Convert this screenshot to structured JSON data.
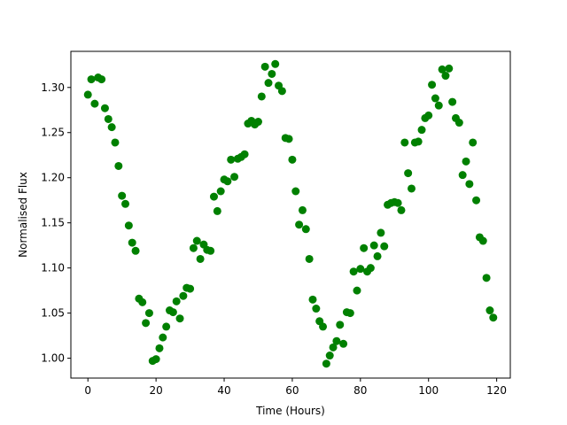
{
  "chart_data": {
    "type": "scatter",
    "title": "",
    "xlabel": "Time (Hours)",
    "ylabel": "Normalised Flux",
    "xlim": [
      -5,
      124
    ],
    "ylim": [
      0.978,
      1.34
    ],
    "xticks": [
      0,
      20,
      40,
      60,
      80,
      100,
      120
    ],
    "xtick_labels": [
      "0",
      "20",
      "40",
      "60",
      "80",
      "100",
      "120"
    ],
    "yticks": [
      1.0,
      1.05,
      1.1,
      1.15,
      1.2,
      1.25,
      1.3
    ],
    "ytick_labels": [
      "1.00",
      "1.05",
      "1.10",
      "1.15",
      "1.20",
      "1.25",
      "1.30"
    ],
    "grid": false,
    "marker_color": "#008000",
    "series": [
      {
        "x": [
          0,
          1,
          2,
          3,
          4,
          5,
          6,
          7,
          8,
          9,
          10,
          11,
          12,
          13,
          14,
          15,
          16,
          17,
          18,
          19,
          20,
          21,
          22,
          23,
          24,
          25,
          26,
          27,
          28,
          29,
          30,
          31,
          32,
          33,
          34,
          35,
          36,
          37,
          38,
          39,
          40,
          41,
          42,
          43,
          44,
          45,
          46,
          47,
          48,
          49,
          50,
          51,
          52,
          53,
          54,
          55,
          56,
          57,
          58,
          59,
          60,
          61,
          62,
          63,
          64,
          65,
          66,
          67,
          68,
          69,
          70,
          71,
          72,
          73,
          74,
          75,
          76,
          77,
          78,
          79,
          80,
          81,
          82,
          83,
          84,
          85,
          86,
          87,
          88,
          89,
          90,
          91,
          92,
          93,
          94,
          95,
          96,
          97,
          98,
          99,
          100,
          101,
          102,
          103,
          104,
          105,
          106,
          107,
          108,
          109,
          110,
          111,
          112,
          113,
          114,
          115,
          116,
          117,
          118,
          119
        ],
        "y": [
          1.292,
          1.309,
          1.282,
          1.311,
          1.309,
          1.277,
          1.265,
          1.256,
          1.239,
          1.213,
          1.18,
          1.171,
          1.147,
          1.128,
          1.119,
          1.066,
          1.062,
          1.039,
          1.05,
          0.997,
          0.999,
          1.011,
          1.023,
          1.035,
          1.053,
          1.051,
          1.063,
          1.044,
          1.069,
          1.078,
          1.077,
          1.122,
          1.13,
          1.11,
          1.126,
          1.12,
          1.119,
          1.179,
          1.163,
          1.185,
          1.198,
          1.196,
          1.22,
          1.201,
          1.221,
          1.223,
          1.226,
          1.26,
          1.263,
          1.259,
          1.262,
          1.29,
          1.323,
          1.305,
          1.315,
          1.326,
          1.302,
          1.296,
          1.244,
          1.243,
          1.22,
          1.185,
          1.148,
          1.164,
          1.143,
          1.11,
          1.065,
          1.055,
          1.041,
          1.035,
          0.994,
          1.003,
          1.012,
          1.019,
          1.037,
          1.016,
          1.051,
          1.05,
          1.096,
          1.075,
          1.099,
          1.122,
          1.096,
          1.1,
          1.125,
          1.113,
          1.139,
          1.124,
          1.17,
          1.172,
          1.173,
          1.172,
          1.164,
          1.239,
          1.205,
          1.188,
          1.239,
          1.24,
          1.253,
          1.266,
          1.269,
          1.303,
          1.288,
          1.28,
          1.32,
          1.313,
          1.321,
          1.284,
          1.266,
          1.261,
          1.203,
          1.218,
          1.193,
          1.239,
          1.175,
          1.134,
          1.13,
          1.089,
          1.053,
          1.045
        ]
      }
    ]
  }
}
